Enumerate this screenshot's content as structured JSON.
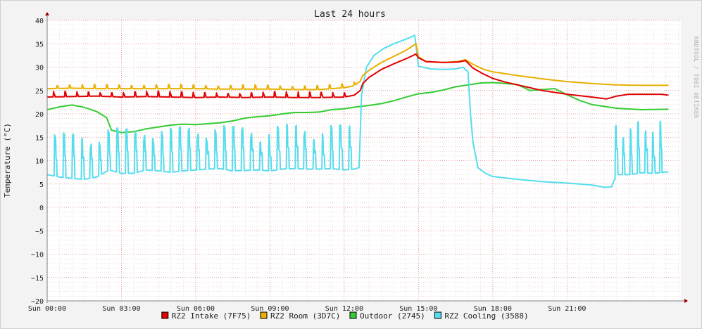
{
  "chart_data": {
    "type": "line",
    "title": "Last 24 hours",
    "ylabel": "Temperature (°C)",
    "xlabel": "",
    "ylim": [
      -20,
      40
    ],
    "xlim": [
      0,
      25.6
    ],
    "yticks": [
      40,
      35,
      30,
      25,
      20,
      15,
      10,
      5,
      0,
      -5,
      -10,
      -15,
      -20
    ],
    "xticks": [
      {
        "x": 0,
        "label": "Sun 00:00"
      },
      {
        "x": 3,
        "label": "Sun 03:00"
      },
      {
        "x": 6,
        "label": "Sun 06:00"
      },
      {
        "x": 9,
        "label": "Sun 09:00"
      },
      {
        "x": 12,
        "label": "Sun 12:00"
      },
      {
        "x": 15,
        "label": "Sun 15:00"
      },
      {
        "x": 18,
        "label": "Sun 18:00"
      },
      {
        "x": 21,
        "label": "Sun 21:00"
      }
    ],
    "grid": true,
    "legend_position": "bottom",
    "watermark": "RRDTOOL / TOBI OETIKER",
    "colors": {
      "background": "#f3f3f3",
      "plot_background": "#ffffff",
      "grid_minor": "#e8c8c8",
      "grid_major": "#e08080",
      "axis": "#808080"
    },
    "series": [
      {
        "name": "RZ2 Intake (7F75)",
        "color": "#e00000",
        "points": [
          [
            0.0,
            23.6
          ],
          [
            1.0,
            23.7
          ],
          [
            2.0,
            23.8
          ],
          [
            3.0,
            23.6
          ],
          [
            4.0,
            23.7
          ],
          [
            5.0,
            23.6
          ],
          [
            6.0,
            23.5
          ],
          [
            7.0,
            23.6
          ],
          [
            8.0,
            23.5
          ],
          [
            9.0,
            23.6
          ],
          [
            10.0,
            23.5
          ],
          [
            11.0,
            23.5
          ],
          [
            12.0,
            23.6
          ],
          [
            12.4,
            24.0
          ],
          [
            12.65,
            25.0
          ],
          [
            12.75,
            26.5
          ],
          [
            13.0,
            27.8
          ],
          [
            13.5,
            29.5
          ],
          [
            14.0,
            30.7
          ],
          [
            14.5,
            31.8
          ],
          [
            14.9,
            32.8
          ],
          [
            15.0,
            32.0
          ],
          [
            15.3,
            31.2
          ],
          [
            16.0,
            31.0
          ],
          [
            16.6,
            31.1
          ],
          [
            16.9,
            31.4
          ],
          [
            17.2,
            29.8
          ],
          [
            17.6,
            28.6
          ],
          [
            18.0,
            27.6
          ],
          [
            18.5,
            26.8
          ],
          [
            19.0,
            26.2
          ],
          [
            20.0,
            25.0
          ],
          [
            21.0,
            24.2
          ],
          [
            22.0,
            23.6
          ],
          [
            22.6,
            23.2
          ],
          [
            23.0,
            23.8
          ],
          [
            23.5,
            24.2
          ],
          [
            24.0,
            24.2
          ],
          [
            24.8,
            24.2
          ],
          [
            25.1,
            24.0
          ]
        ],
        "pulses": {
          "start": 0.25,
          "end": 12.45,
          "period": 0.47,
          "amp": 1.2,
          "width": 0.06
        }
      },
      {
        "name": "RZ2 Room (3D7C)",
        "color": "#e8b000",
        "points": [
          [
            0.0,
            25.4
          ],
          [
            1.0,
            25.5
          ],
          [
            2.0,
            25.4
          ],
          [
            3.0,
            25.4
          ],
          [
            4.0,
            25.4
          ],
          [
            5.0,
            25.4
          ],
          [
            6.0,
            25.4
          ],
          [
            7.0,
            25.3
          ],
          [
            8.0,
            25.3
          ],
          [
            9.0,
            25.3
          ],
          [
            10.0,
            25.2
          ],
          [
            11.0,
            25.2
          ],
          [
            12.0,
            25.6
          ],
          [
            12.4,
            26.0
          ],
          [
            12.65,
            27.0
          ],
          [
            12.75,
            28.2
          ],
          [
            13.0,
            29.3
          ],
          [
            13.5,
            31.0
          ],
          [
            14.0,
            32.3
          ],
          [
            14.5,
            33.6
          ],
          [
            14.9,
            35.0
          ],
          [
            15.0,
            32.2
          ],
          [
            15.3,
            31.2
          ],
          [
            16.0,
            31.0
          ],
          [
            16.6,
            31.2
          ],
          [
            16.9,
            31.6
          ],
          [
            17.2,
            30.6
          ],
          [
            17.6,
            29.6
          ],
          [
            18.0,
            29.0
          ],
          [
            19.0,
            28.2
          ],
          [
            20.0,
            27.5
          ],
          [
            21.0,
            26.9
          ],
          [
            22.0,
            26.5
          ],
          [
            23.0,
            26.2
          ],
          [
            24.0,
            26.1
          ],
          [
            25.1,
            26.1
          ]
        ],
        "pulses": {
          "start": 0.4,
          "end": 12.45,
          "period": 0.5,
          "amp": 0.9,
          "width": 0.05
        }
      },
      {
        "name": "Outdoor (2745)",
        "color": "#33cc33",
        "points": [
          [
            0.0,
            20.9
          ],
          [
            0.5,
            21.5
          ],
          [
            1.0,
            21.9
          ],
          [
            1.5,
            21.4
          ],
          [
            2.0,
            20.5
          ],
          [
            2.4,
            19.2
          ],
          [
            2.6,
            16.5
          ],
          [
            3.0,
            16.0
          ],
          [
            3.5,
            16.2
          ],
          [
            4.0,
            16.8
          ],
          [
            4.5,
            17.2
          ],
          [
            5.0,
            17.6
          ],
          [
            5.5,
            17.8
          ],
          [
            6.0,
            17.7
          ],
          [
            6.5,
            17.9
          ],
          [
            7.0,
            18.1
          ],
          [
            7.5,
            18.5
          ],
          [
            8.0,
            19.1
          ],
          [
            8.5,
            19.4
          ],
          [
            9.0,
            19.6
          ],
          [
            9.5,
            20.0
          ],
          [
            10.0,
            20.3
          ],
          [
            10.5,
            20.3
          ],
          [
            11.0,
            20.4
          ],
          [
            11.5,
            20.9
          ],
          [
            12.0,
            21.1
          ],
          [
            12.5,
            21.5
          ],
          [
            13.0,
            21.8
          ],
          [
            13.5,
            22.2
          ],
          [
            14.0,
            22.8
          ],
          [
            14.5,
            23.6
          ],
          [
            15.0,
            24.3
          ],
          [
            15.5,
            24.6
          ],
          [
            16.0,
            25.1
          ],
          [
            16.5,
            25.8
          ],
          [
            17.0,
            26.2
          ],
          [
            17.5,
            26.6
          ],
          [
            18.0,
            26.7
          ],
          [
            18.5,
            26.5
          ],
          [
            19.0,
            26.3
          ],
          [
            19.5,
            25.0
          ],
          [
            20.0,
            25.2
          ],
          [
            20.5,
            25.4
          ],
          [
            21.0,
            24.1
          ],
          [
            21.5,
            22.9
          ],
          [
            22.0,
            22.0
          ],
          [
            22.5,
            21.6
          ],
          [
            23.0,
            21.2
          ],
          [
            24.0,
            20.9
          ],
          [
            25.1,
            21.0
          ]
        ]
      },
      {
        "name": "RZ2 Cooling (3588)",
        "color": "#55ddee",
        "points": [
          [
            0.0,
            7.0
          ],
          [
            0.5,
            6.5
          ],
          [
            1.0,
            6.2
          ],
          [
            1.5,
            6.0
          ],
          [
            2.0,
            6.5
          ],
          [
            2.5,
            8.0
          ],
          [
            3.0,
            7.3
          ],
          [
            3.5,
            7.3
          ],
          [
            4.0,
            8.0
          ],
          [
            4.5,
            7.8
          ],
          [
            5.0,
            7.5
          ],
          [
            5.5,
            7.8
          ],
          [
            6.0,
            8.0
          ],
          [
            6.5,
            8.2
          ],
          [
            7.0,
            8.3
          ],
          [
            7.5,
            7.8
          ],
          [
            8.0,
            7.9
          ],
          [
            8.5,
            8.0
          ],
          [
            9.0,
            7.8
          ],
          [
            9.5,
            8.2
          ],
          [
            10.0,
            8.3
          ],
          [
            10.5,
            8.2
          ],
          [
            11.0,
            8.2
          ],
          [
            11.5,
            8.3
          ],
          [
            12.0,
            8.0
          ],
          [
            12.4,
            8.2
          ],
          [
            12.6,
            8.5
          ],
          [
            12.7,
            24.0
          ],
          [
            12.9,
            30.0
          ],
          [
            13.2,
            32.5
          ],
          [
            13.6,
            34.0
          ],
          [
            14.0,
            35.0
          ],
          [
            14.5,
            36.0
          ],
          [
            14.85,
            36.8
          ],
          [
            15.0,
            30.2
          ],
          [
            15.5,
            29.6
          ],
          [
            16.0,
            29.5
          ],
          [
            16.5,
            29.6
          ],
          [
            16.8,
            30.0
          ],
          [
            17.0,
            29.0
          ],
          [
            17.1,
            20.0
          ],
          [
            17.2,
            14.0
          ],
          [
            17.4,
            8.5
          ],
          [
            17.7,
            7.3
          ],
          [
            18.0,
            6.6
          ],
          [
            18.5,
            6.3
          ],
          [
            19.0,
            6.0
          ],
          [
            20.0,
            5.5
          ],
          [
            21.0,
            5.2
          ],
          [
            22.0,
            4.8
          ],
          [
            22.5,
            4.3
          ],
          [
            22.8,
            4.4
          ],
          [
            23.0,
            7.0
          ],
          [
            23.5,
            7.0
          ],
          [
            24.0,
            7.4
          ],
          [
            24.5,
            7.3
          ],
          [
            25.1,
            7.6
          ]
        ],
        "pulses": {
          "start": 0.3,
          "end": 12.45,
          "period": 0.36,
          "amp": 9.5,
          "width": 0.1,
          "secondary": {
            "start": 22.95,
            "end": 25.0,
            "period": 0.3,
            "amp": 11.0,
            "width": 0.09
          }
        }
      }
    ]
  }
}
